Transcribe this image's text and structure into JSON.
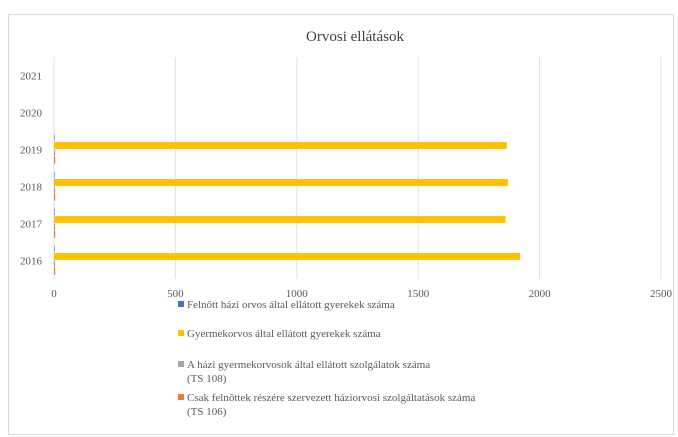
{
  "chart_data": {
    "type": "bar",
    "orientation": "horizontal",
    "title": "Orvosi ellátások",
    "categories": [
      "2016",
      "2017",
      "2018",
      "2019",
      "2020",
      "2021"
    ],
    "xlim": [
      0,
      2500
    ],
    "x_ticks": [
      "0",
      "500",
      "1000",
      "1500",
      "2000",
      "2500"
    ],
    "grid": true,
    "legend_position": "bottom",
    "series": [
      {
        "name": "Felnőtt házi orvos által ellátott gyerekek száma",
        "name_lines": [
          "Felnőtt házi orvos által ellátott gyerekek száma"
        ],
        "color": "#4472c4",
        "values": [
          0,
          0,
          0,
          0,
          null,
          null
        ]
      },
      {
        "name": "Gyermekorvos által ellátott gyerekek száma",
        "name_lines": [
          "Gyermekorvos által ellátott gyerekek száma"
        ],
        "color": "#ffc000",
        "values": [
          1920,
          1860,
          1870,
          1865,
          null,
          null
        ]
      },
      {
        "name": "A házi gyermekorvosok által ellátott szolgálatok száma (TS 108)",
        "name_lines": [
          "A házi gyermekorvosok által ellátott szolgálatok száma",
          "(TS 108)"
        ],
        "color": "#a5a5a5",
        "values": [
          1,
          1,
          1,
          1,
          null,
          null
        ]
      },
      {
        "name": "Csak felnőttek részére szervezett háziorvosi szolgáltatások száma (TS 106)",
        "name_lines": [
          "Csak felnőttek részére szervezett háziorvosi szolgáltatások száma",
          "(TS 106)"
        ],
        "color": "#ed7d31",
        "values": [
          5,
          5,
          5,
          5,
          null,
          null
        ]
      }
    ]
  }
}
